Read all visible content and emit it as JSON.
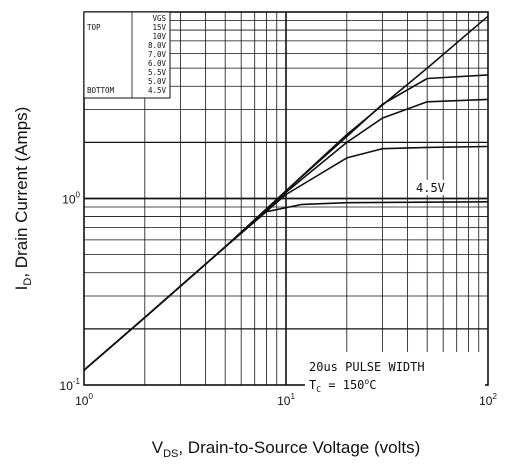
{
  "chart_data": {
    "type": "line",
    "xscale": "log",
    "yscale": "log",
    "xlim": [
      1,
      100
    ],
    "ylim": [
      0.1,
      10
    ],
    "grid": true,
    "x_ticks": [
      {
        "base": "10",
        "exp": "0",
        "value": 1
      },
      {
        "base": "10",
        "exp": "1",
        "value": 10
      },
      {
        "base": "10",
        "exp": "2",
        "value": 100
      }
    ],
    "y_ticks": [
      {
        "base": "10",
        "exp": "-1",
        "value": 0.1
      },
      {
        "base": "10",
        "exp": "0",
        "value": 1
      }
    ],
    "xlabel": {
      "main": "V",
      "sub": "DS",
      "rest": ", Drain-to-Source Voltage (volts)"
    },
    "ylabel": {
      "main": "I",
      "sub": "D",
      "rest": ", Drain Current (Amps)"
    },
    "legend": {
      "header": "VGS",
      "top_label": "TOP",
      "bottom_label": "BOTTOM",
      "entries": [
        "15V",
        "10V",
        "8.0V",
        "7.0V",
        "6.0V",
        "5.5V",
        "5.0V",
        "4.5V"
      ]
    },
    "annotations": {
      "pulse": "20us PULSE WIDTH",
      "temp_main": "T",
      "temp_sub": "C",
      "temp_rest": " = 150",
      "temp_sup": "o",
      "temp_unit": "C"
    },
    "curve_label": "4.5V",
    "series": [
      {
        "values": [
          [
            1,
            0.12
          ],
          [
            2,
            0.23
          ],
          [
            5,
            0.55
          ],
          [
            10,
            1.1
          ],
          [
            20,
            2.2
          ],
          [
            50,
            5.0
          ],
          [
            100,
            9.5
          ]
        ]
      },
      {
        "values": [
          [
            1,
            0.12
          ],
          [
            2,
            0.23
          ],
          [
            5,
            0.55
          ],
          [
            10,
            1.1
          ],
          [
            20,
            2.15
          ],
          [
            30,
            3.2
          ],
          [
            50,
            4.4
          ],
          [
            100,
            4.6
          ]
        ]
      },
      {
        "values": [
          [
            1,
            0.12
          ],
          [
            2,
            0.23
          ],
          [
            5,
            0.55
          ],
          [
            10,
            1.08
          ],
          [
            20,
            2.0
          ],
          [
            30,
            2.7
          ],
          [
            50,
            3.3
          ],
          [
            100,
            3.4
          ]
        ]
      },
      {
        "values": [
          [
            1,
            0.12
          ],
          [
            2,
            0.23
          ],
          [
            5,
            0.55
          ],
          [
            10,
            1.05
          ],
          [
            20,
            1.65
          ],
          [
            30,
            1.85
          ],
          [
            50,
            1.88
          ],
          [
            100,
            1.9
          ]
        ]
      },
      {
        "values": [
          [
            1,
            0.12
          ],
          [
            2,
            0.23
          ],
          [
            5,
            0.55
          ],
          [
            8,
            0.85
          ],
          [
            12,
            0.93
          ],
          [
            20,
            0.95
          ],
          [
            100,
            0.96
          ]
        ]
      }
    ]
  }
}
